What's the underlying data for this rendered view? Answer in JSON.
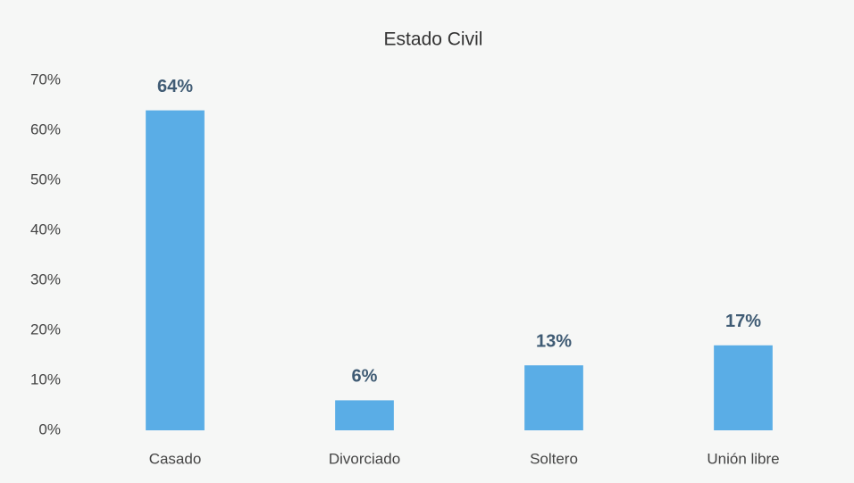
{
  "chart_data": {
    "type": "bar",
    "title": "Estado Civil",
    "categories": [
      "Casado",
      "Divorciado",
      "Soltero",
      "Unión libre"
    ],
    "values": [
      64,
      6,
      13,
      17
    ],
    "value_labels": [
      "64%",
      "6%",
      "13%",
      "17%"
    ],
    "color": "#5aade6",
    "ylim": [
      0,
      70
    ],
    "yticks": [
      {
        "value": 0,
        "label": "0%"
      },
      {
        "value": 10,
        "label": "10%"
      },
      {
        "value": 20,
        "label": "20%"
      },
      {
        "value": 30,
        "label": "30%"
      },
      {
        "value": 40,
        "label": "40%"
      },
      {
        "value": 50,
        "label": "50%"
      },
      {
        "value": 60,
        "label": "60%"
      },
      {
        "value": 70,
        "label": "70%"
      }
    ],
    "grid": false
  }
}
